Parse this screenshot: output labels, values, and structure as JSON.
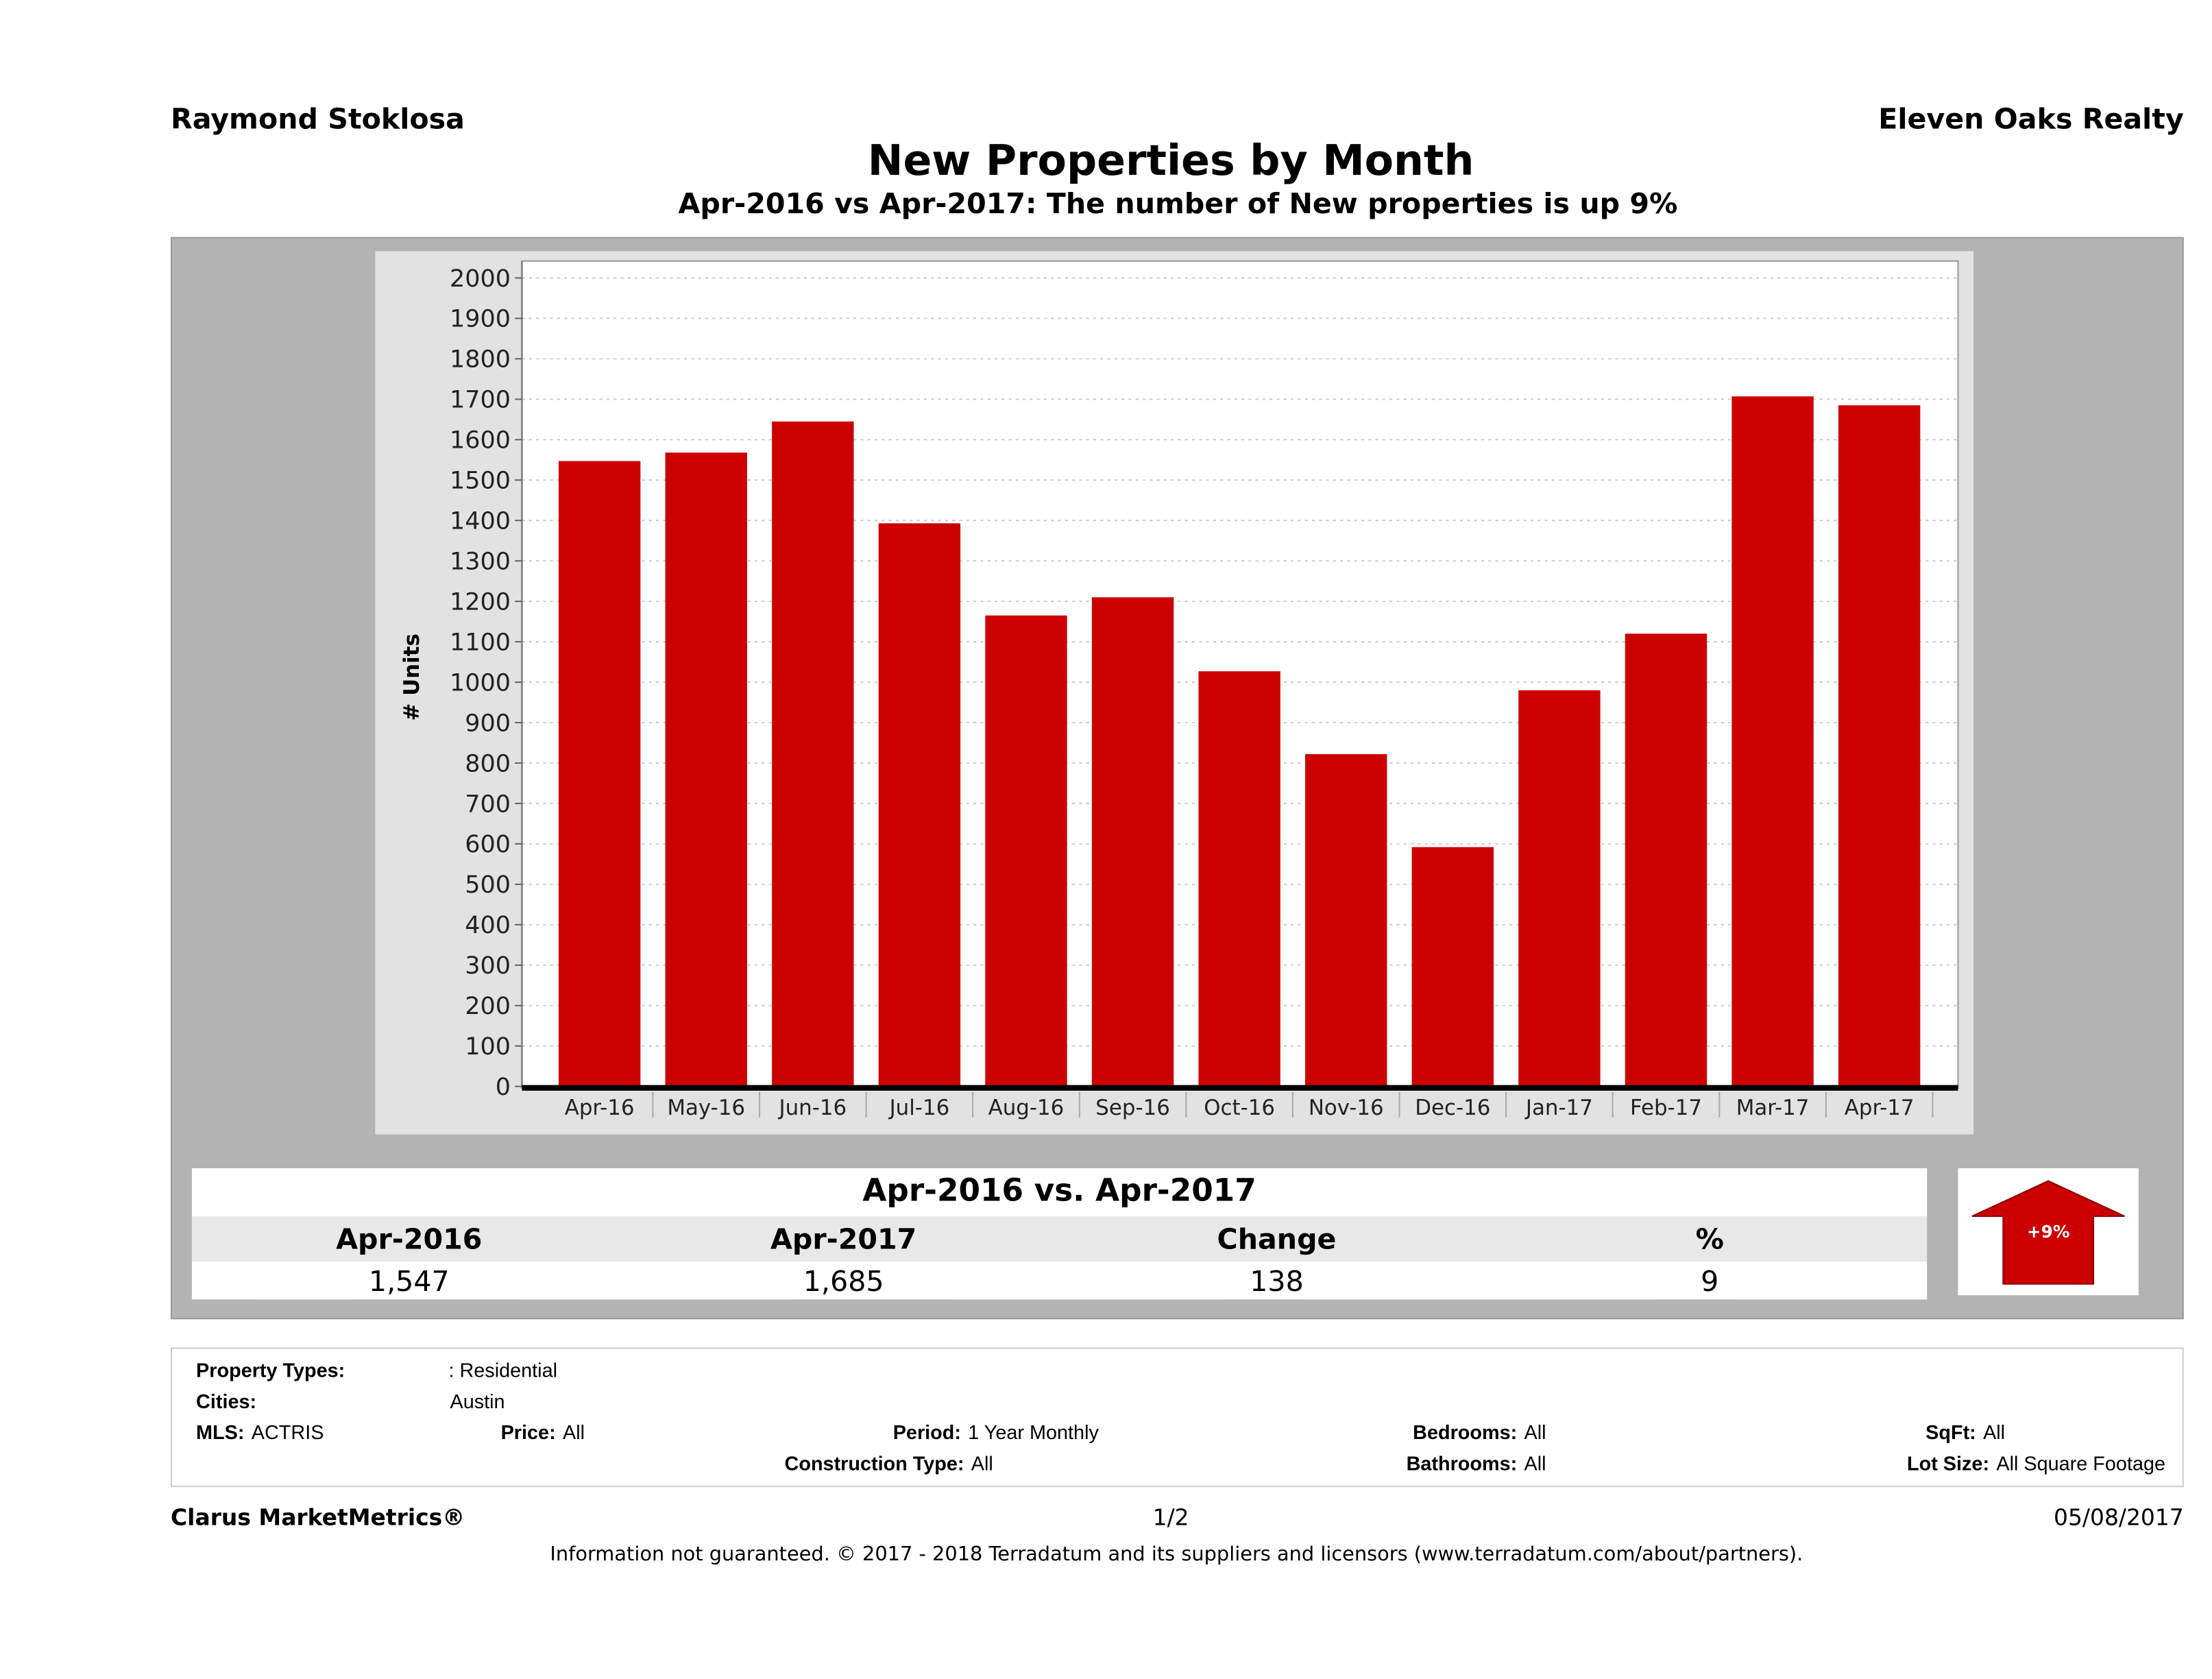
{
  "header": {
    "agent": "Raymond Stoklosa",
    "brokerage": "Eleven Oaks Realty",
    "title": "New Properties by Month",
    "subtitle": "Apr-2016 vs Apr-2017: The number of New  properties is up 9%"
  },
  "chart_data": {
    "type": "bar",
    "title": "",
    "xlabel": "",
    "ylabel": "# Units",
    "ylim": [
      0,
      2000
    ],
    "yticks": [
      0,
      100,
      200,
      300,
      400,
      500,
      600,
      700,
      800,
      900,
      1000,
      1100,
      1200,
      1300,
      1400,
      1500,
      1600,
      1700,
      1800,
      1900,
      2000
    ],
    "grid": true,
    "bar_color": "#cc0000",
    "categories": [
      "Apr-16",
      "May-16",
      "Jun-16",
      "Jul-16",
      "Aug-16",
      "Sep-16",
      "Oct-16",
      "Nov-16",
      "Dec-16",
      "Jan-17",
      "Feb-17",
      "Mar-17",
      "Apr-17"
    ],
    "values": [
      1547,
      1568,
      1645,
      1393,
      1165,
      1210,
      1027,
      822,
      592,
      980,
      1120,
      1707,
      1685
    ]
  },
  "summary": {
    "title": "Apr-2016 vs. Apr-2017",
    "headers": [
      "Apr-2016",
      "Apr-2017",
      "Change",
      "%"
    ],
    "values": [
      "1,547",
      "1,685",
      "138",
      "9"
    ],
    "badge": "+9%",
    "badge_direction": "up",
    "badge_color": "#cc0000"
  },
  "criteria": {
    "property_types_label": "Property Types:",
    "property_types": ": Residential",
    "cities_label": "Cities:",
    "cities": "Austin",
    "mls_label": "MLS:",
    "mls": "ACTRIS",
    "price_label": "Price:",
    "price": "All",
    "period_label": "Period:",
    "period": "1 Year Monthly",
    "bedrooms_label": "Bedrooms:",
    "bedrooms": "All",
    "sqft_label": "SqFt:",
    "sqft": "All",
    "construction_label": "Construction Type:",
    "construction": "All",
    "bathrooms_label": "Bathrooms:",
    "bathrooms": "All",
    "lot_label": "Lot Size:",
    "lot": "All Square Footage"
  },
  "footer": {
    "brand": "Clarus MarketMetrics®",
    "page": "1/2",
    "date": "05/08/2017",
    "disclaimer": "Information not guaranteed. © 2017 - 2018 Terradatum and its suppliers and licensors (www.terradatum.com/about/partners)."
  }
}
